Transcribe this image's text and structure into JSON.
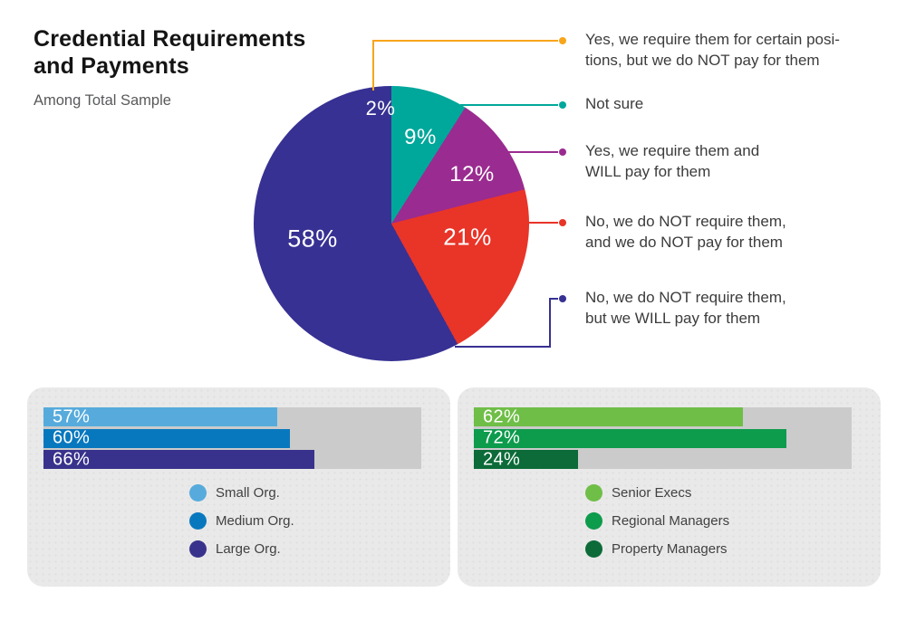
{
  "header": {
    "title_line1": "Credential Requirements",
    "title_line2": "and Payments",
    "subtitle": "Among Total Sample"
  },
  "chart_data": [
    {
      "type": "pie",
      "title": "Credential Requirements and Payments",
      "subtitle": "Among Total Sample",
      "slices": [
        {
          "label": "Not sure",
          "value": 9,
          "display": "9%",
          "color": "#00A79B"
        },
        {
          "label": "Yes, we require them and WILL pay for them",
          "value": 12,
          "display": "12%",
          "color": "#9A2B90"
        },
        {
          "label": "No, we do NOT require them, and we do NOT pay for them",
          "value": 21,
          "display": "21%",
          "color": "#E93428"
        },
        {
          "label": "No, we do NOT require them, but we WILL pay for them",
          "value": 58,
          "display": "58%",
          "color": "#373193"
        },
        {
          "label": "Yes, we require them for certain positions, but we do NOT pay for them",
          "value": 2,
          "display": "2%",
          "color": "#F8A51B"
        }
      ],
      "callouts": [
        {
          "color": "#F8A51B",
          "lines": [
            "Yes, we require them for certain posi-",
            "tions, but we do NOT pay for them"
          ]
        },
        {
          "color": "#00A79B",
          "lines": [
            "Not sure"
          ]
        },
        {
          "color": "#9A2B90",
          "lines": [
            "Yes, we require them and",
            "WILL pay for them"
          ]
        },
        {
          "color": "#E93428",
          "lines": [
            "No, we do NOT require them,",
            "and we do NOT pay for them"
          ]
        },
        {
          "color": "#373193",
          "lines": [
            "No, we do NOT require them,",
            "but we WILL pay for them"
          ]
        }
      ],
      "legend_position": "right",
      "start_angle": "top, clockwise"
    },
    {
      "type": "bar",
      "orientation": "horizontal",
      "categories": [
        "Small Org.",
        "Medium Org.",
        "Large Org."
      ],
      "values": [
        57,
        60,
        66
      ],
      "labels_display": [
        "57%",
        "60%",
        "66%"
      ],
      "colors": [
        "#56ABDC",
        "#0878BE",
        "#39328C"
      ],
      "xlim": [
        0,
        92
      ],
      "legend_position": "bottom-center"
    },
    {
      "type": "bar",
      "orientation": "horizontal",
      "categories": [
        "Senior Execs",
        "Regional Managers",
        "Property Managers"
      ],
      "values": [
        62,
        72,
        24
      ],
      "labels_display": [
        "62%",
        "72%",
        "24%"
      ],
      "colors": [
        "#6FBE47",
        "#0D9B4C",
        "#0C6B38"
      ],
      "xlim": [
        0,
        87
      ],
      "legend_position": "bottom-center"
    }
  ]
}
